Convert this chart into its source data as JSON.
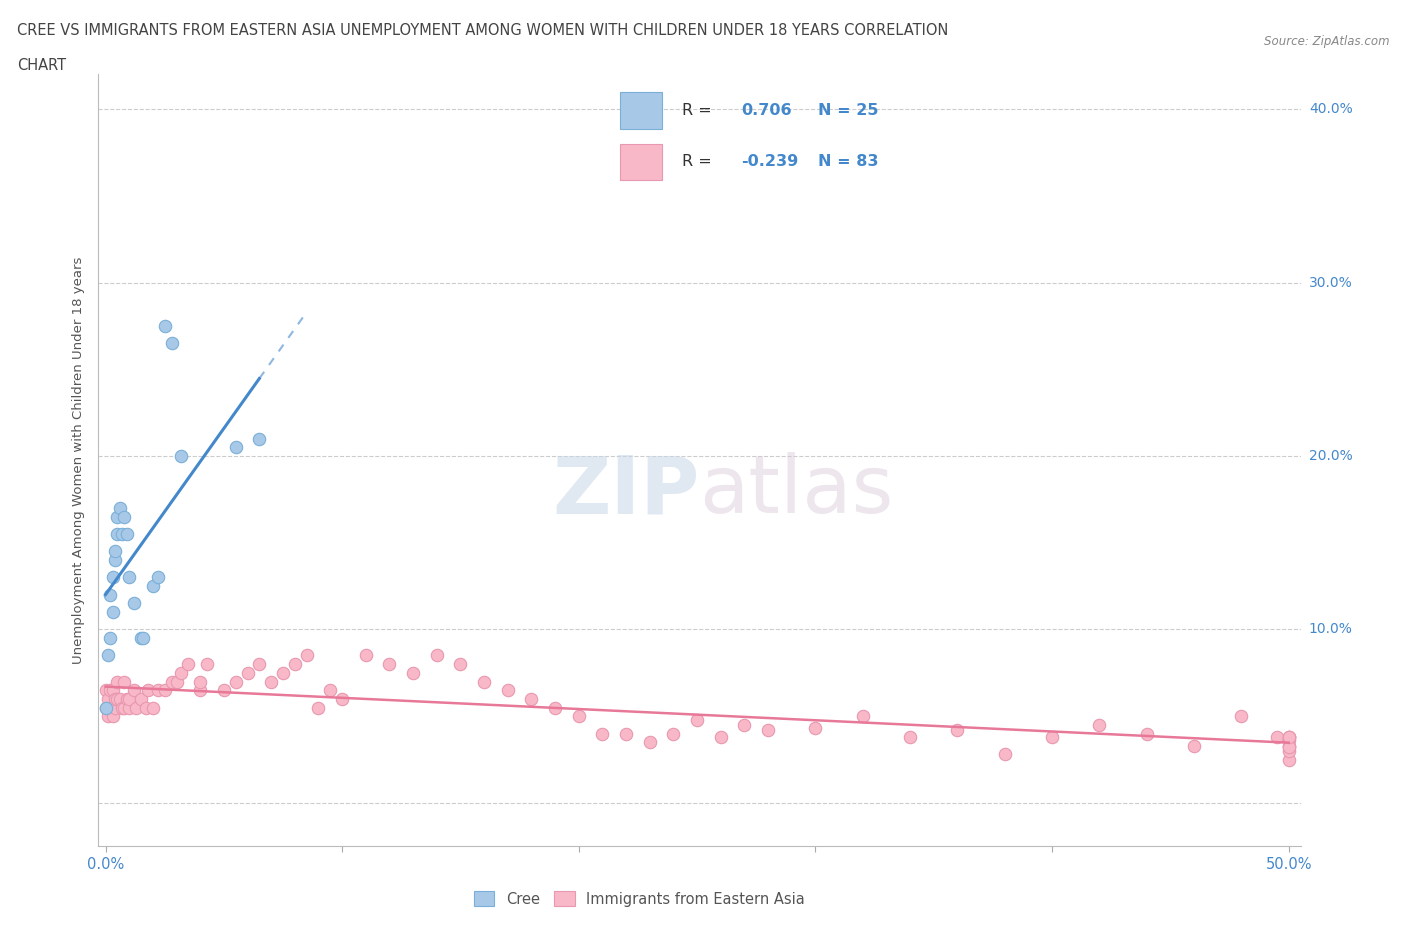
{
  "title_line1": "CREE VS IMMIGRANTS FROM EASTERN ASIA UNEMPLOYMENT AMONG WOMEN WITH CHILDREN UNDER 18 YEARS CORRELATION",
  "title_line2": "CHART",
  "source": "Source: ZipAtlas.com",
  "ylabel": "Unemployment Among Women with Children Under 18 years",
  "xlim": [
    -0.003,
    0.505
  ],
  "ylim": [
    -0.025,
    0.42
  ],
  "yticks": [
    0.0,
    0.1,
    0.2,
    0.3,
    0.4
  ],
  "xticks": [
    0.0,
    0.1,
    0.2,
    0.3,
    0.4,
    0.5
  ],
  "cree_R": 0.706,
  "cree_N": 25,
  "immigrant_R": -0.239,
  "immigrant_N": 83,
  "cree_color": "#a8c8e8",
  "cree_edge_color": "#7ab0d8",
  "cree_line_color": "#4488cc",
  "immigrant_color": "#f8b8c8",
  "immigrant_edge_color": "#e898b0",
  "immigrant_line_color": "#e87898",
  "watermark_color": "#d8e8f4",
  "cree_x": [
    0.0,
    0.001,
    0.002,
    0.002,
    0.003,
    0.003,
    0.004,
    0.004,
    0.005,
    0.005,
    0.006,
    0.007,
    0.008,
    0.009,
    0.01,
    0.012,
    0.015,
    0.016,
    0.02,
    0.022,
    0.025,
    0.028,
    0.032,
    0.055,
    0.065
  ],
  "cree_y": [
    0.055,
    0.085,
    0.095,
    0.12,
    0.11,
    0.13,
    0.14,
    0.145,
    0.155,
    0.165,
    0.17,
    0.155,
    0.165,
    0.155,
    0.13,
    0.115,
    0.095,
    0.095,
    0.125,
    0.13,
    0.275,
    0.265,
    0.2,
    0.205,
    0.21
  ],
  "immigrant_x": [
    0.0,
    0.0,
    0.001,
    0.001,
    0.002,
    0.002,
    0.003,
    0.003,
    0.004,
    0.004,
    0.005,
    0.005,
    0.006,
    0.007,
    0.008,
    0.008,
    0.009,
    0.01,
    0.01,
    0.012,
    0.013,
    0.015,
    0.017,
    0.018,
    0.02,
    0.022,
    0.025,
    0.028,
    0.03,
    0.032,
    0.035,
    0.04,
    0.04,
    0.043,
    0.05,
    0.055,
    0.06,
    0.065,
    0.07,
    0.075,
    0.08,
    0.085,
    0.09,
    0.095,
    0.1,
    0.11,
    0.12,
    0.13,
    0.14,
    0.15,
    0.16,
    0.17,
    0.18,
    0.19,
    0.2,
    0.21,
    0.22,
    0.23,
    0.24,
    0.25,
    0.26,
    0.27,
    0.28,
    0.3,
    0.32,
    0.34,
    0.36,
    0.38,
    0.4,
    0.42,
    0.44,
    0.46,
    0.48,
    0.495,
    0.5,
    0.5,
    0.5,
    0.5,
    0.5,
    0.5,
    0.5,
    0.5,
    0.5
  ],
  "immigrant_y": [
    0.055,
    0.065,
    0.05,
    0.06,
    0.055,
    0.065,
    0.05,
    0.065,
    0.055,
    0.06,
    0.06,
    0.07,
    0.06,
    0.055,
    0.055,
    0.07,
    0.06,
    0.055,
    0.06,
    0.065,
    0.055,
    0.06,
    0.055,
    0.065,
    0.055,
    0.065,
    0.065,
    0.07,
    0.07,
    0.075,
    0.08,
    0.065,
    0.07,
    0.08,
    0.065,
    0.07,
    0.075,
    0.08,
    0.07,
    0.075,
    0.08,
    0.085,
    0.055,
    0.065,
    0.06,
    0.085,
    0.08,
    0.075,
    0.085,
    0.08,
    0.07,
    0.065,
    0.06,
    0.055,
    0.05,
    0.04,
    0.04,
    0.035,
    0.04,
    0.048,
    0.038,
    0.045,
    0.042,
    0.043,
    0.05,
    0.038,
    0.042,
    0.028,
    0.038,
    0.045,
    0.04,
    0.033,
    0.05,
    0.038,
    0.032,
    0.036,
    0.025,
    0.03,
    0.038,
    0.033,
    0.038,
    0.032,
    0.038
  ]
}
